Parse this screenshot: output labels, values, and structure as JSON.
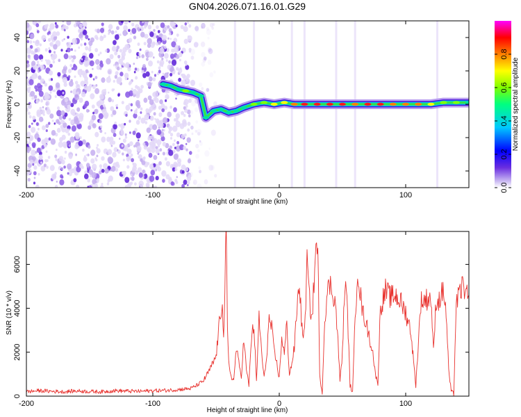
{
  "title": "GN04.2026.071.16.01.G29",
  "chart_data": [
    {
      "type": "heatmap",
      "xlabel": "Height of straight line (km)",
      "ylabel": "Frequency (Hz)",
      "xlim": [
        -200,
        150
      ],
      "ylim": [
        -50,
        50
      ],
      "xticks": [
        -200,
        -100,
        0,
        100
      ],
      "xtick_labels": [
        "-200",
        "-100",
        "0",
        "100"
      ],
      "yticks": [
        -40,
        -20,
        0,
        20,
        40
      ],
      "ytick_labels": [
        "-40",
        "-20",
        "0",
        "20",
        "40"
      ],
      "colorbar": {
        "label": "Normalized spectral amplitude",
        "range": [
          0,
          1
        ],
        "ticks": [
          0.0,
          0.2,
          0.4,
          0.6,
          0.8
        ],
        "tick_labels": [
          "0.0",
          "0.2",
          "0.4",
          "0.6",
          "0.8"
        ],
        "colors": [
          "#ffffff",
          "#c9b8f2",
          "#6a2ee0",
          "#0000ff",
          "#00c8ff",
          "#00ff80",
          "#80ff00",
          "#ffff00",
          "#ff8000",
          "#ff0000",
          "#ff00ff"
        ]
      },
      "noise_region_x": [
        -200,
        -70
      ],
      "ridge": [
        {
          "x": -92,
          "y": 12,
          "a": 0.4
        },
        {
          "x": -86,
          "y": 11,
          "a": 0.45
        },
        {
          "x": -80,
          "y": 9,
          "a": 0.5
        },
        {
          "x": -74,
          "y": 8,
          "a": 0.55
        },
        {
          "x": -68,
          "y": 7,
          "a": 0.5
        },
        {
          "x": -62,
          "y": 5,
          "a": 0.5
        },
        {
          "x": -58,
          "y": -8,
          "a": 0.3
        },
        {
          "x": -52,
          "y": -4,
          "a": 0.4
        },
        {
          "x": -46,
          "y": -3,
          "a": 0.45
        },
        {
          "x": -40,
          "y": -5,
          "a": 0.45
        },
        {
          "x": -34,
          "y": -4,
          "a": 0.45
        },
        {
          "x": -28,
          "y": -2,
          "a": 0.5
        },
        {
          "x": -20,
          "y": 0,
          "a": 0.55
        },
        {
          "x": -12,
          "y": 1,
          "a": 0.6
        },
        {
          "x": -4,
          "y": 0,
          "a": 0.65
        },
        {
          "x": 4,
          "y": 1,
          "a": 0.7
        },
        {
          "x": 12,
          "y": 0,
          "a": 0.8
        },
        {
          "x": 20,
          "y": 0,
          "a": 0.85
        },
        {
          "x": 30,
          "y": 0,
          "a": 0.9
        },
        {
          "x": 40,
          "y": 0,
          "a": 0.9
        },
        {
          "x": 50,
          "y": 0,
          "a": 0.85
        },
        {
          "x": 60,
          "y": 0,
          "a": 0.8
        },
        {
          "x": 70,
          "y": 0,
          "a": 0.9
        },
        {
          "x": 80,
          "y": 0,
          "a": 0.85
        },
        {
          "x": 90,
          "y": 0,
          "a": 0.8
        },
        {
          "x": 100,
          "y": 0,
          "a": 0.75
        },
        {
          "x": 110,
          "y": 0,
          "a": 0.75
        },
        {
          "x": 120,
          "y": 0,
          "a": 0.7
        },
        {
          "x": 130,
          "y": 1,
          "a": 0.6
        },
        {
          "x": 140,
          "y": 1,
          "a": 0.55
        },
        {
          "x": 150,
          "y": 1,
          "a": 0.5
        }
      ]
    },
    {
      "type": "line",
      "xlabel": "Height of straight line (km)",
      "ylabel": "SNR (10 * v/v)",
      "xlim": [
        -200,
        150
      ],
      "ylim": [
        0,
        7500
      ],
      "xticks": [
        -200,
        -100,
        0,
        100
      ],
      "xtick_labels": [
        "-200",
        "-100",
        "0",
        "100"
      ],
      "yticks": [
        0,
        2000,
        4000,
        6000
      ],
      "ytick_labels": [
        "0",
        "2000",
        "4000",
        "6000"
      ],
      "color": "#e8302c",
      "series": [
        {
          "x": [
            -200,
            -190,
            -180,
            -170,
            -160,
            -150,
            -140,
            -130,
            -120,
            -110,
            -100,
            -90,
            -80,
            -70,
            -65,
            -60,
            -55,
            -50,
            -47,
            -45,
            -44,
            -43,
            -42,
            -41,
            -40,
            -38,
            -36,
            -34,
            -32,
            -30,
            -28,
            -26,
            -24,
            -22,
            -20,
            -18,
            -16,
            -14,
            -12,
            -10,
            -8,
            -6,
            -4,
            -2,
            0,
            2,
            4,
            6,
            8,
            10,
            12,
            14,
            16,
            18,
            20,
            22,
            24,
            26,
            28,
            30,
            31,
            32,
            34,
            36,
            38,
            40,
            42,
            44,
            46,
            48,
            50,
            52,
            54,
            56,
            58,
            60,
            62,
            64,
            66,
            68,
            70,
            72,
            74,
            76,
            78,
            80,
            84,
            88,
            92,
            96,
            100,
            104,
            108,
            112,
            116,
            120,
            122,
            124,
            126,
            128,
            130,
            132,
            134,
            136,
            138,
            140,
            142,
            144,
            146,
            148,
            150
          ],
          "y": [
            200,
            250,
            220,
            200,
            240,
            210,
            200,
            250,
            230,
            220,
            250,
            260,
            300,
            350,
            500,
            700,
            1200,
            1800,
            3500,
            4500,
            2500,
            5000,
            7400,
            3000,
            1500,
            900,
            700,
            2200,
            1500,
            900,
            2600,
            1200,
            500,
            2700,
            3200,
            600,
            3700,
            2000,
            800,
            1800,
            3500,
            3100,
            2000,
            1500,
            800,
            2700,
            1900,
            3300,
            1000,
            1500,
            2200,
            4000,
            5200,
            3000,
            2800,
            6100,
            4300,
            3500,
            5800,
            7300,
            5000,
            900,
            200,
            3600,
            4700,
            5100,
            4800,
            4400,
            3000,
            700,
            2000,
            5300,
            3800,
            500,
            200,
            3500,
            5900,
            4700,
            3800,
            3500,
            3000,
            2500,
            2000,
            1000,
            600,
            4000,
            4800,
            4500,
            4600,
            4300,
            3800,
            3000,
            500,
            4300,
            4400,
            4500,
            2000,
            4400,
            4300,
            4600,
            4800,
            3800,
            1200,
            200,
            100,
            4300,
            4500,
            4900,
            5100,
            4500,
            4600
          ]
        }
      ]
    }
  ]
}
